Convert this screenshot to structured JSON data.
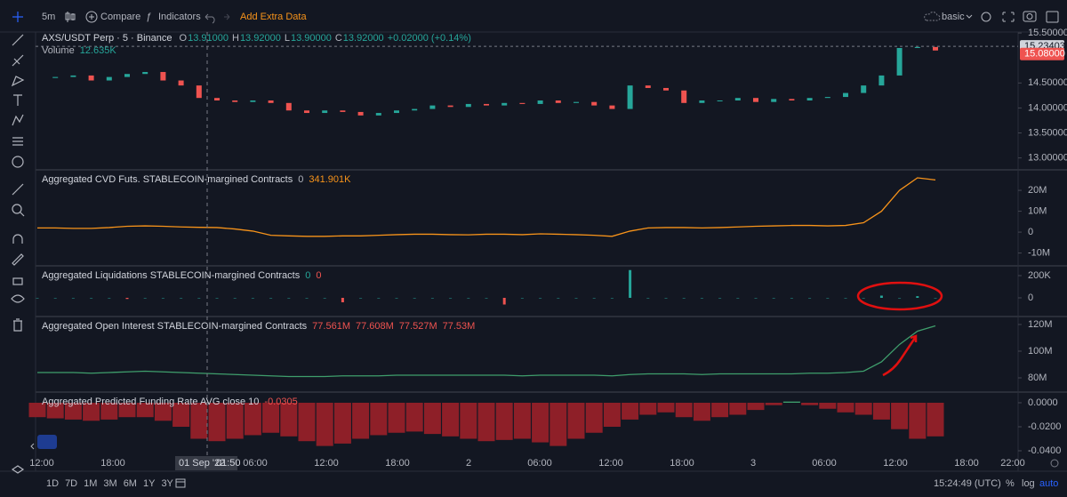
{
  "toolbar": {
    "interval": "5m",
    "compare": "Compare",
    "indicators": "Indicators",
    "extra": "Add Extra Data",
    "layout": "basic"
  },
  "chart_data": [
    {
      "type": "candlestick",
      "title": "AXS/USDT Perp · 5 · Binance",
      "ohlc": [
        {
          "label": "O",
          "value": "13.91000"
        },
        {
          "label": "H",
          "value": "13.92000"
        },
        {
          "label": "L",
          "value": "13.90000"
        },
        {
          "label": "C",
          "value": "13.92000"
        }
      ],
      "change": "+0.02000 (+0.14%)",
      "volume_label": "Volume",
      "volume_value": "12.635K",
      "values": [
        14.6,
        14.62,
        14.65,
        14.55,
        14.62,
        14.68,
        14.72,
        14.55,
        14.45,
        14.2,
        14.15,
        14.12,
        14.15,
        14.1,
        13.95,
        13.9,
        13.95,
        13.92,
        13.85,
        13.9,
        13.95,
        13.98,
        14.05,
        14.02,
        14.08,
        14.05,
        14.1,
        14.08,
        14.15,
        14.1,
        14.12,
        14.05,
        13.98,
        14.45,
        14.4,
        14.35,
        14.1,
        14.15,
        14.15,
        14.2,
        14.12,
        14.18,
        14.15,
        14.2,
        14.22,
        14.3,
        14.45,
        14.65,
        15.2,
        15.22,
        15.15
      ],
      "ylim": [
        12.78,
        15.52
      ],
      "yticks": [
        {
          "value": 15.5,
          "label": "15.50000"
        },
        {
          "value": 14.5,
          "label": "14.50000"
        },
        {
          "value": 14,
          "label": "14.00000"
        },
        {
          "value": 13.5,
          "label": "13.50000"
        },
        {
          "value": 13,
          "label": "13.00000"
        }
      ],
      "price_labels": [
        {
          "value": 15.23403,
          "label": "15.23403",
          "color": "#d1d4dc"
        },
        {
          "value": 15.08,
          "label": "15.08000",
          "color": "#ef5350"
        }
      ],
      "up_color": "#26a69a",
      "down_color": "#ef5350"
    },
    {
      "type": "line",
      "title": "Aggregated CVD Futs. STABLECOIN-margined Contracts",
      "legend": [
        {
          "text": "0",
          "color": "#b2b5be"
        },
        {
          "text": "341.901K",
          "color": "#f7931a"
        }
      ],
      "color": "#f7931a",
      "values": [
        2000000,
        2000000,
        1800000,
        1800000,
        2200000,
        2800000,
        3000000,
        2800000,
        2500000,
        2300000,
        2200000,
        1500000,
        500000,
        -1500000,
        -1800000,
        -2000000,
        -2000000,
        -1800000,
        -1800000,
        -1500000,
        -1200000,
        -1000000,
        -1000000,
        -1200000,
        -1300000,
        -1000000,
        -1000000,
        -1200000,
        -800000,
        -1000000,
        -1200000,
        -1500000,
        -2000000,
        500000,
        2000000,
        2200000,
        2200000,
        2000000,
        2200000,
        2500000,
        2800000,
        3000000,
        3200000,
        3200000,
        3000000,
        3200000,
        4500000,
        10000000,
        20000000,
        26000000,
        25000000
      ],
      "ylim": [
        -15700000,
        29400000
      ],
      "yticks": [
        {
          "value": 20000000,
          "label": "20M"
        },
        {
          "value": 10000000,
          "label": "10M"
        },
        0,
        {
          "value": -10000000,
          "label": "-10M"
        }
      ]
    },
    {
      "type": "histogram",
      "title": "Aggregated Liquidations STABLECOIN-margined Contracts",
      "legend": [
        {
          "text": "0",
          "color": "#26a69a"
        },
        {
          "text": "0",
          "color": "#ef5350"
        }
      ],
      "up_color": "#26a69a",
      "down_color": "#ef5350",
      "values": [
        0,
        0,
        0,
        0,
        0,
        -10000,
        0,
        0,
        0,
        0,
        0,
        0,
        0,
        0,
        0,
        0,
        0,
        -40000,
        0,
        0,
        0,
        0,
        0,
        0,
        0,
        0,
        -60000,
        0,
        0,
        0,
        0,
        0,
        0,
        250000,
        0,
        0,
        0,
        0,
        0,
        0,
        0,
        0,
        0,
        0,
        0,
        0,
        0,
        20000,
        0,
        15000,
        0
      ],
      "ylim": [
        -160000,
        280000
      ],
      "yticks": [
        {
          "value": 200000,
          "label": "200K"
        },
        0
      ]
    },
    {
      "type": "line",
      "title": "Aggregated Open Interest STABLECOIN-margined Contracts",
      "legend": [
        {
          "text": "77.561M",
          "color": "#ef5350"
        },
        {
          "text": "77.608M",
          "color": "#ef5350"
        },
        {
          "text": "77.527M",
          "color": "#ef5350"
        },
        {
          "text": "77.53M",
          "color": "#ef5350"
        }
      ],
      "color": "#3f9e6c",
      "values": [
        84000000,
        84000000,
        84000000,
        83500000,
        84000000,
        84500000,
        85000000,
        84500000,
        84000000,
        83500000,
        83000000,
        82500000,
        82000000,
        81500000,
        81000000,
        81000000,
        81000000,
        81500000,
        81500000,
        81500000,
        82000000,
        82000000,
        82000000,
        82000000,
        82000000,
        82000000,
        82000000,
        81500000,
        82000000,
        82000000,
        82000000,
        82000000,
        81500000,
        82500000,
        83000000,
        83000000,
        83000000,
        82500000,
        83000000,
        83000000,
        83000000,
        83000000,
        83000000,
        83500000,
        83500000,
        84000000,
        85000000,
        92000000,
        105000000,
        115000000,
        119000000
      ],
      "ylim": [
        70000000,
        125300000
      ],
      "yticks": [
        {
          "value": 120000000,
          "label": "120M"
        },
        {
          "value": 100000000,
          "label": "100M"
        },
        {
          "value": 80000000,
          "label": "80M"
        }
      ]
    },
    {
      "type": "histogram",
      "title": "Aggregated Predicted Funding Rate AVG close 10",
      "legend": [
        {
          "text": "-0.0305",
          "color": "#ef5350"
        }
      ],
      "up_color": "#3f9e6c",
      "down_color": "#8e1f28",
      "values": [
        -0.012,
        -0.013,
        -0.014,
        -0.015,
        -0.014,
        -0.012,
        -0.012,
        -0.015,
        -0.02,
        -0.03,
        -0.032,
        -0.03,
        -0.027,
        -0.025,
        -0.028,
        -0.032,
        -0.036,
        -0.034,
        -0.03,
        -0.027,
        -0.025,
        -0.024,
        -0.026,
        -0.028,
        -0.03,
        -0.032,
        -0.031,
        -0.03,
        -0.033,
        -0.036,
        -0.03,
        -0.025,
        -0.02,
        -0.014,
        -0.01,
        -0.008,
        -0.012,
        -0.015,
        -0.012,
        -0.01,
        -0.006,
        -0.002,
        0.001,
        -0.002,
        -0.005,
        -0.008,
        -0.01,
        -0.014,
        -0.022,
        -0.03,
        -0.028
      ],
      "ylim": [
        -0.0437,
        0.00815
      ],
      "yticks": [
        {
          "value": 0,
          "label": "0.0000"
        },
        {
          "value": -0.02,
          "label": "-0.0200"
        },
        {
          "value": -0.04,
          "label": "-0.0400"
        }
      ]
    }
  ],
  "time_axis": {
    "labels": [
      "12:00",
      "18:00",
      "06:00",
      "12:00",
      "18:00",
      "2",
      "06:00",
      "12:00",
      "18:00",
      "3",
      "06:00",
      "12:00",
      "18:00",
      "22:00"
    ],
    "crosshair_date": "01 Sep '22",
    "crosshair_time": "01:50"
  },
  "bottom_bar": {
    "ranges": [
      "1D",
      "7D",
      "1M",
      "3M",
      "6M",
      "1Y",
      "3Y"
    ],
    "clock": "15:24:49 (UTC)",
    "percent": "%",
    "log": "log",
    "auto": "auto"
  }
}
